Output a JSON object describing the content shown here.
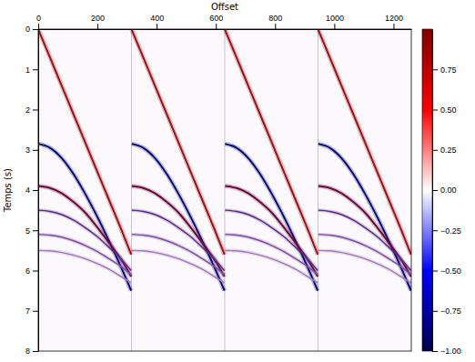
{
  "chart_data": {
    "type": "line",
    "x_label": "Offset",
    "y_label": "Temps (s)",
    "xlim": [
      0,
      1260
    ],
    "ylim": [
      0,
      8
    ],
    "xticks": [
      0,
      200,
      400,
      600,
      800,
      1000,
      1200
    ],
    "yticks": [
      0,
      1,
      2,
      3,
      4,
      5,
      6,
      7,
      8
    ],
    "x": [
      1,
      40,
      80,
      120,
      160,
      200,
      240,
      280,
      314,
      315,
      316,
      355,
      395,
      435,
      475,
      515,
      555,
      595,
      629,
      630,
      631,
      670,
      710,
      750,
      790,
      830,
      870,
      910,
      944,
      945,
      946,
      985,
      1025,
      1065,
      1105,
      1145,
      1185,
      1225,
      1259
    ],
    "series": [
      {
        "color": "#a50f15",
        "values": [
          0.02,
          0.71,
          1.42,
          2.13,
          2.84,
          3.55,
          4.26,
          4.97,
          5.6,
          null,
          0.02,
          0.71,
          1.42,
          2.13,
          2.84,
          3.55,
          4.26,
          4.97,
          5.6,
          null,
          0.02,
          0.71,
          1.42,
          2.13,
          2.84,
          3.55,
          4.26,
          4.97,
          5.6,
          null,
          0.02,
          0.71,
          1.42,
          2.13,
          2.84,
          3.55,
          4.26,
          4.97,
          5.6
        ]
      },
      {
        "color": "#08087a",
        "values": [
          2.85,
          2.95,
          3.21,
          3.61,
          4.11,
          4.67,
          5.28,
          5.92,
          6.5,
          null,
          2.85,
          2.95,
          3.21,
          3.61,
          4.11,
          4.67,
          5.28,
          5.92,
          6.5,
          null,
          2.85,
          2.95,
          3.21,
          3.61,
          4.11,
          4.67,
          5.28,
          5.92,
          6.5,
          null,
          2.85,
          2.95,
          3.21,
          3.61,
          4.11,
          4.67,
          5.28,
          5.92,
          6.5
        ]
      },
      {
        "color": "#6a0a3a",
        "values": [
          3.9,
          3.95,
          4.08,
          4.3,
          4.57,
          4.93,
          5.32,
          5.72,
          6.15,
          null,
          3.9,
          3.95,
          4.08,
          4.3,
          4.57,
          4.93,
          5.32,
          5.72,
          6.15,
          null,
          3.9,
          3.95,
          4.08,
          4.3,
          4.57,
          4.93,
          5.32,
          5.72,
          6.15,
          null,
          3.9,
          3.95,
          4.08,
          4.3,
          4.57,
          4.93,
          5.32,
          5.72,
          6.15
        ]
      },
      {
        "color": "#5b2a86",
        "values": [
          4.5,
          4.53,
          4.61,
          4.75,
          4.94,
          5.16,
          5.43,
          5.71,
          6.0,
          null,
          4.5,
          4.53,
          4.61,
          4.75,
          4.94,
          5.16,
          5.43,
          5.71,
          6.0,
          null,
          4.5,
          4.53,
          4.61,
          4.75,
          4.94,
          5.16,
          5.43,
          5.71,
          6.0,
          null,
          4.5,
          4.53,
          4.61,
          4.75,
          4.94,
          5.16,
          5.43,
          5.71,
          6.0
        ]
      },
      {
        "color": "#7b4f9e",
        "values": [
          5.1,
          5.12,
          5.17,
          5.26,
          5.38,
          5.53,
          5.71,
          5.9,
          6.1,
          null,
          5.1,
          5.12,
          5.17,
          5.26,
          5.38,
          5.53,
          5.71,
          5.9,
          6.1,
          null,
          5.1,
          5.12,
          5.17,
          5.26,
          5.38,
          5.53,
          5.71,
          5.9,
          6.1,
          null,
          5.1,
          5.12,
          5.17,
          5.26,
          5.38,
          5.53,
          5.71,
          5.9,
          6.1
        ]
      },
      {
        "color": "#a07ab8",
        "values": [
          5.5,
          5.51,
          5.55,
          5.62,
          5.71,
          5.83,
          5.97,
          6.15,
          6.3,
          null,
          5.5,
          5.51,
          5.55,
          5.62,
          5.71,
          5.83,
          5.97,
          6.15,
          6.3,
          null,
          5.5,
          5.51,
          5.55,
          5.62,
          5.71,
          5.83,
          5.97,
          6.15,
          6.3,
          null,
          5.5,
          5.51,
          5.55,
          5.62,
          5.71,
          5.83,
          5.97,
          6.15,
          6.3
        ]
      }
    ],
    "colorbar": {
      "lim": [
        -1,
        1
      ],
      "ticks": [
        {
          "value": -1,
          "label": "−1.00"
        },
        {
          "value": -0.75,
          "label": "−0.75"
        },
        {
          "value": -0.5,
          "label": "−0.50"
        },
        {
          "value": -0.25,
          "label": "−0.25"
        },
        {
          "value": 0,
          "label": "0.00"
        },
        {
          "value": 0.25,
          "label": "0.25"
        },
        {
          "value": 0.5,
          "label": "0.50"
        },
        {
          "value": 0.75,
          "label": "0.75"
        }
      ]
    }
  }
}
